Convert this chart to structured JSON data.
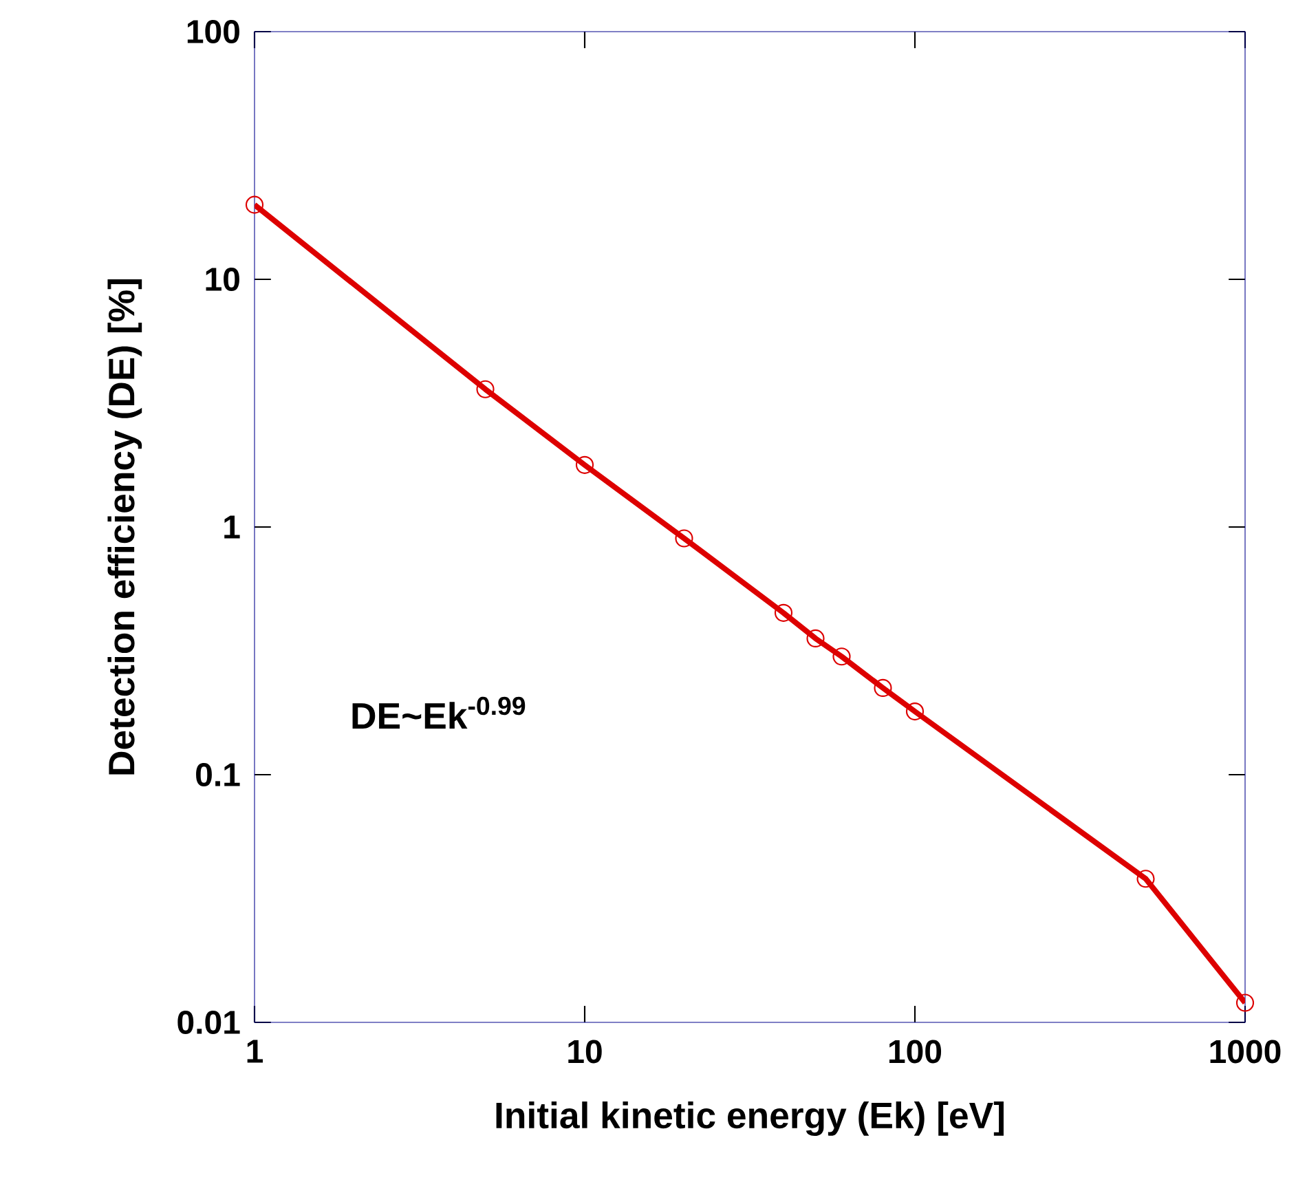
{
  "chart_data": {
    "type": "line",
    "xlabel": "Initial kinetic energy (Ek) [eV]",
    "ylabel": "Detection efficiency (DE) [%]",
    "x": [
      1,
      5,
      10,
      20,
      40,
      50,
      60,
      80,
      100,
      500,
      1000
    ],
    "series": [
      {
        "color": "#dd0000",
        "values": [
          20,
          3.6,
          1.78,
          0.9,
          0.45,
          0.355,
          0.3,
          0.224,
          0.18,
          0.038,
          0.012
        ]
      }
    ],
    "log": "xy",
    "marker": "circle",
    "line_style": "solid",
    "grid": false,
    "xlim": [
      1,
      1000
    ],
    "ylim": [
      0.01,
      100
    ],
    "xticks": [
      1,
      10,
      100,
      1000
    ],
    "yticks": [
      0.01,
      0.1,
      1,
      10,
      100
    ],
    "annotations": [
      "DE~Ek$^{-0.99}$"
    ]
  }
}
